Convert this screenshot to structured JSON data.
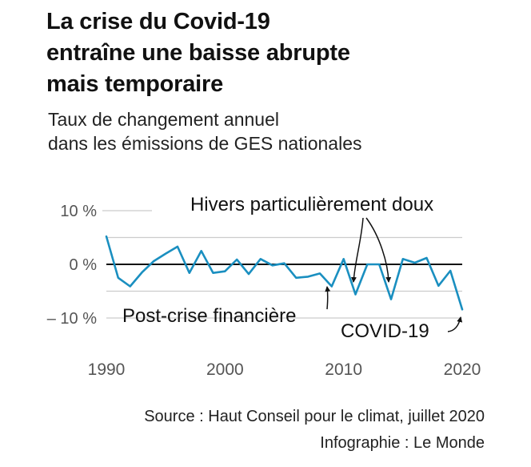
{
  "title_lines": [
    "La crise du Covid-19",
    "entraîne une baisse abrupte",
    "mais temporaire"
  ],
  "subtitle_lines": [
    "Taux de changement annuel",
    "dans les émissions de GES nationales"
  ],
  "colors": {
    "line": "#1a8fc0",
    "grid": "#cccccc",
    "zero": "#111111",
    "text": "#111111",
    "axis_text": "#555555"
  },
  "chart_data": {
    "type": "line",
    "title": "La crise du Covid-19 entraîne une baisse abrupte mais temporaire",
    "subtitle": "Taux de changement annuel dans les émissions de GES nationales",
    "xlabel": "",
    "ylabel": "",
    "xlim": [
      1990,
      2020
    ],
    "ylim": [
      -10,
      10
    ],
    "x_ticks": [
      1990,
      2000,
      2010,
      2020
    ],
    "y_ticks": [
      {
        "value": 10,
        "label": "10 %"
      },
      {
        "value": 0,
        "label": "0 %"
      },
      {
        "value": -10,
        "label": "– 10 %"
      }
    ],
    "grid": true,
    "series": [
      {
        "name": "Émissions de GES",
        "x": [
          1990,
          1991,
          1992,
          1993,
          1994,
          1995,
          1996,
          1997,
          1998,
          1999,
          2000,
          2001,
          2002,
          2003,
          2004,
          2005,
          2006,
          2007,
          2008,
          2009,
          2010,
          2011,
          2012,
          2013,
          2014,
          2015,
          2016,
          2017,
          2018,
          2019,
          2020
        ],
        "values": [
          5.2,
          -2.5,
          -4.1,
          -1.5,
          0.6,
          2.0,
          3.3,
          -1.6,
          2.5,
          -1.6,
          -1.3,
          0.9,
          -1.8,
          1.0,
          -0.2,
          0.2,
          -2.5,
          -2.3,
          -1.7,
          -4.1,
          1.0,
          -5.6,
          0.0,
          0.0,
          -6.5,
          1.0,
          0.3,
          1.2,
          -4.0,
          -1.2,
          -8.4
        ]
      }
    ],
    "annotations": [
      {
        "text": "Hivers particulièrement doux",
        "years": [
          2011,
          2014
        ]
      },
      {
        "text": "Post-crise financière",
        "year": 2009
      },
      {
        "text": "COVID-19",
        "year": 2020
      }
    ]
  },
  "footer": {
    "source": "Source : Haut Conseil pour le climat, juillet 2020",
    "credit": "Infographie : Le Monde"
  }
}
